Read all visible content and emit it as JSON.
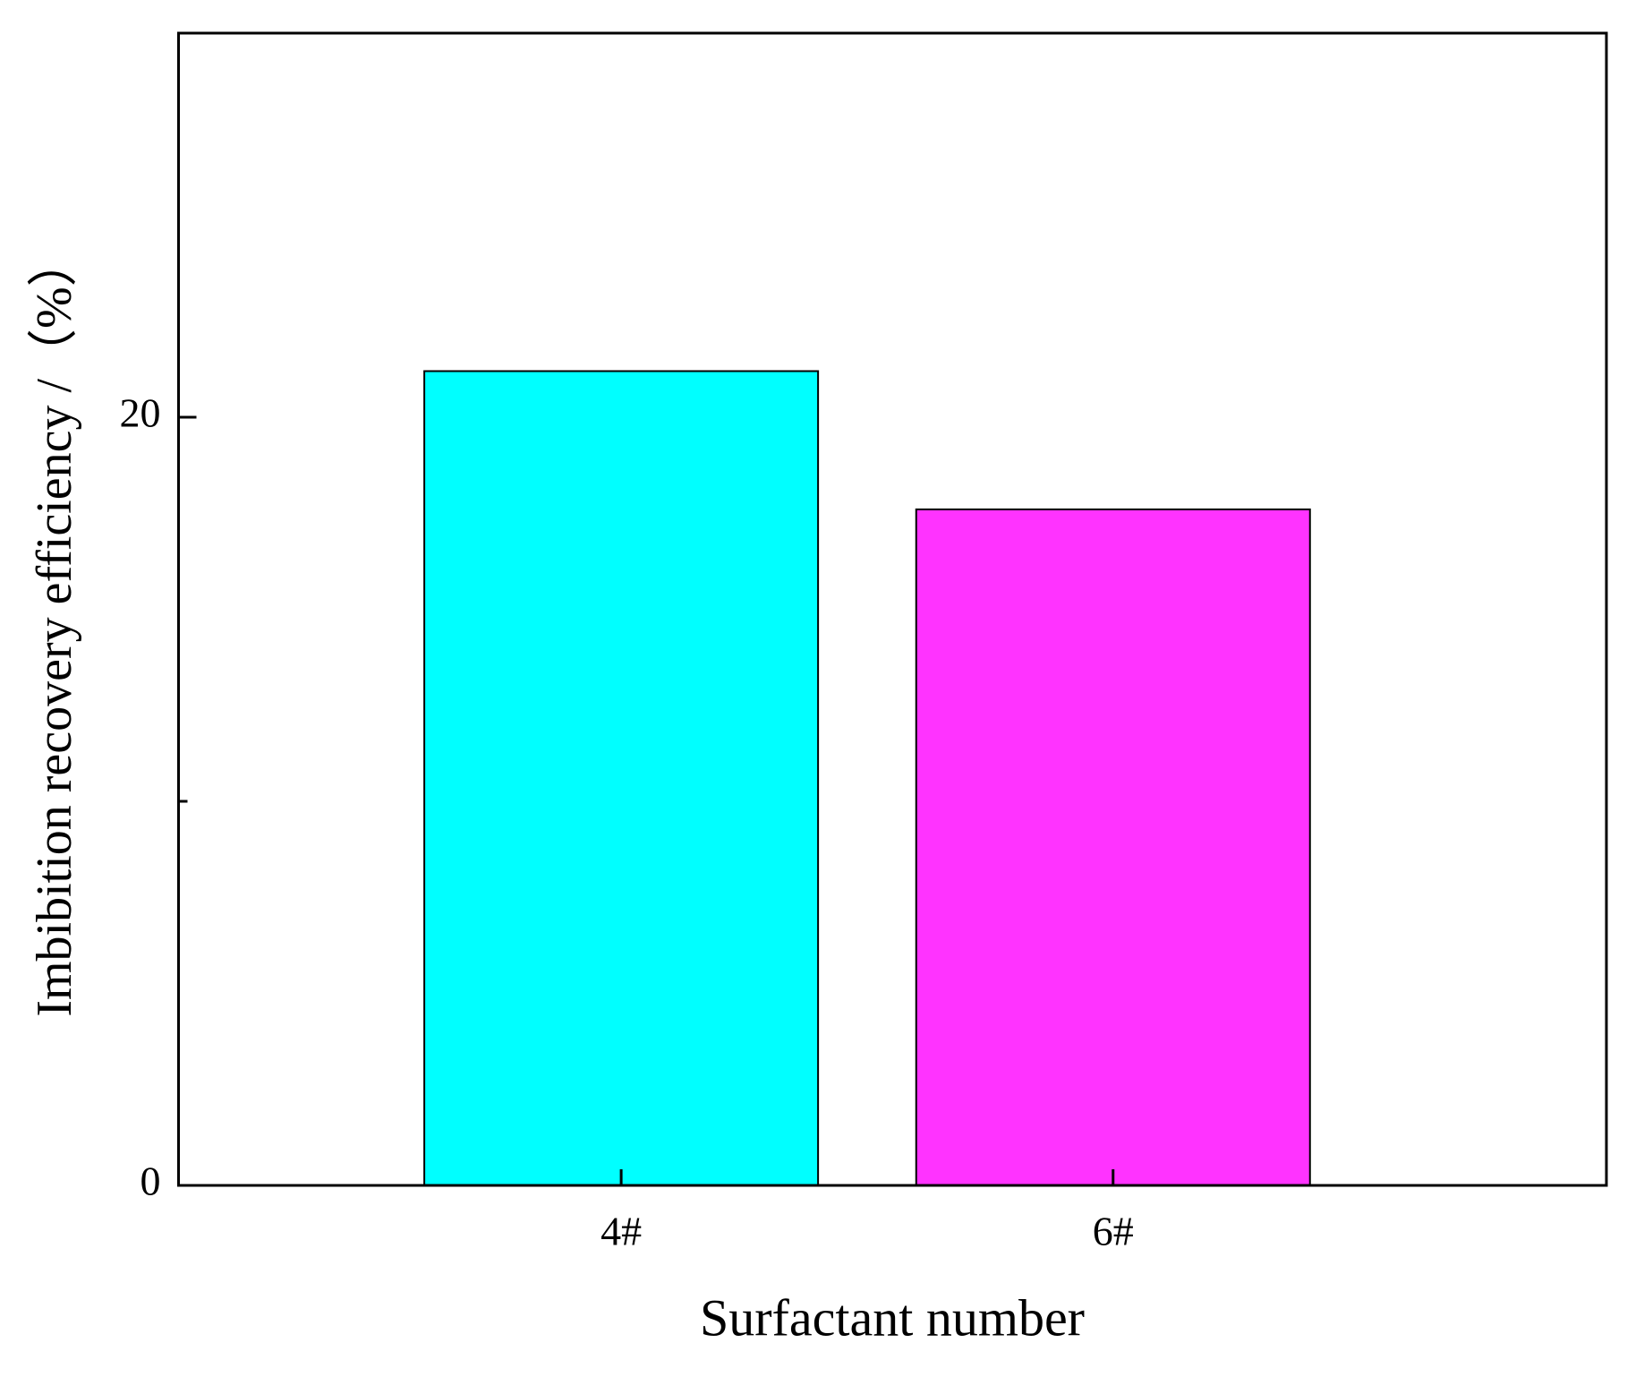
{
  "chart_data": {
    "type": "bar",
    "categories": [
      "4#",
      "6#"
    ],
    "values": [
      21.2,
      17.6
    ],
    "colors": [
      "#00ffff",
      "#ff33ff"
    ],
    "xlabel": "Surfactant number",
    "ylabel": "Imbibition recovery efficiency /（%）",
    "ylim": [
      0,
      30
    ],
    "yticks": [
      0,
      20
    ],
    "minor_yticks": [
      10
    ],
    "grid": false
  }
}
